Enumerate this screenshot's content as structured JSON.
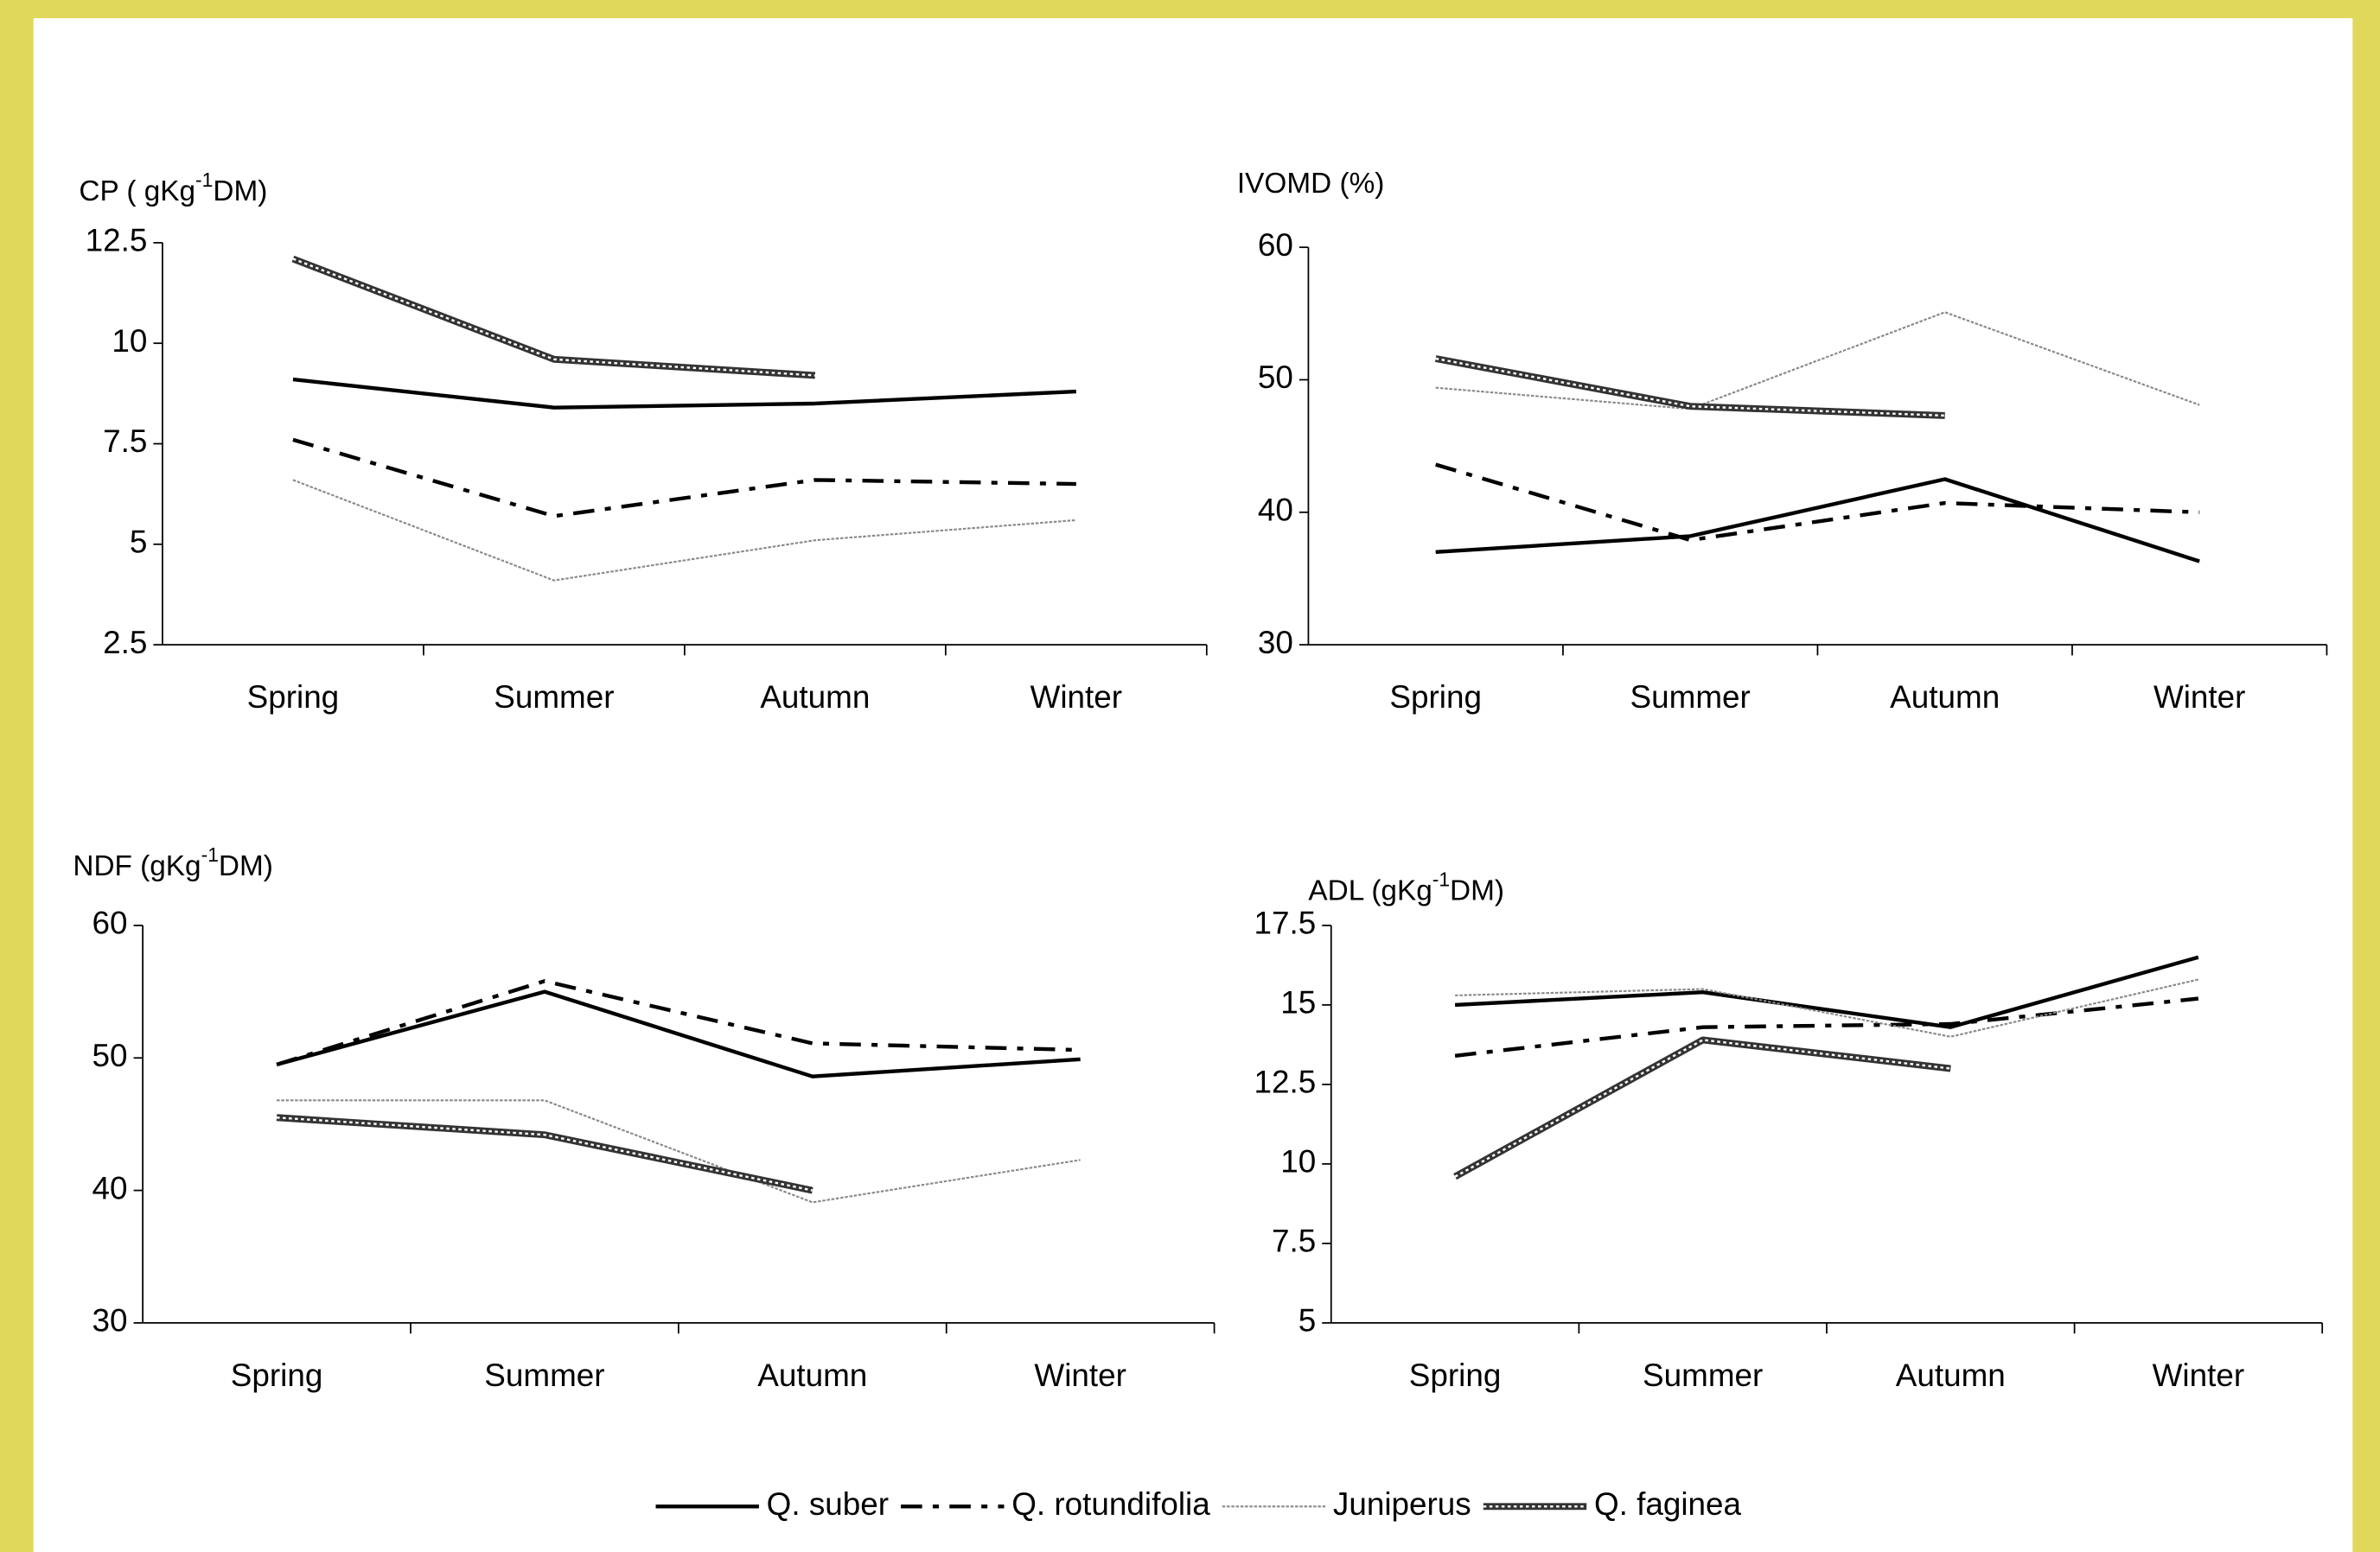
{
  "chart_data": [
    {
      "type": "line",
      "title": [
        "CP ( gKg",
        "-1",
        "DM)"
      ],
      "categories": [
        "Spring",
        "Summer",
        "Autumn",
        "Winter"
      ],
      "ylim": [
        2.5,
        12.5
      ],
      "yticks": [
        2.5,
        5,
        7.5,
        10,
        12.5
      ],
      "series": [
        {
          "name": "Q. suber",
          "color": "#000000",
          "style": "solid",
          "values": [
            9.1,
            8.4,
            8.5,
            8.8
          ]
        },
        {
          "name": "Q. rotundifolia",
          "color": "#000000",
          "style": "dash-dot",
          "values": [
            7.6,
            5.7,
            6.6,
            6.5
          ]
        },
        {
          "name": "Juniperus",
          "color": "#888888",
          "style": "dotted",
          "values": [
            6.6,
            4.1,
            5.1,
            5.6
          ]
        },
        {
          "name": "Q. faginea",
          "color": "#333333",
          "style": "beaded",
          "values": [
            12.1,
            9.6,
            9.2,
            null
          ]
        }
      ]
    },
    {
      "type": "line",
      "title": [
        "IVOMD (%)"
      ],
      "categories": [
        "Spring",
        "Summer",
        "Autumn",
        "Winter"
      ],
      "ylim": [
        30,
        60
      ],
      "yticks": [
        30,
        40,
        50,
        60
      ],
      "series": [
        {
          "name": "Q. suber",
          "color": "#000000",
          "style": "solid",
          "values": [
            37,
            38.2,
            42.5,
            36.3
          ]
        },
        {
          "name": "Q. rotundifolia",
          "color": "#000000",
          "style": "dash-dot",
          "values": [
            43.6,
            37.9,
            40.7,
            40
          ]
        },
        {
          "name": "Juniperus",
          "color": "#888888",
          "style": "dotted",
          "values": [
            49.4,
            47.8,
            55.1,
            48.1
          ]
        },
        {
          "name": "Q. faginea",
          "color": "#333333",
          "style": "beaded",
          "values": [
            51.6,
            48,
            47.3,
            null
          ]
        }
      ]
    },
    {
      "type": "line",
      "title": [
        "NDF (gKg",
        "-1",
        "DM)"
      ],
      "categories": [
        "Spring",
        "Summer",
        "Autumn",
        "Winter"
      ],
      "ylim": [
        30,
        60
      ],
      "yticks": [
        30,
        40,
        50,
        60
      ],
      "series": [
        {
          "name": "Q. suber",
          "color": "#000000",
          "style": "solid",
          "values": [
            49.5,
            55,
            48.6,
            49.9
          ]
        },
        {
          "name": "Q. rotundifolia",
          "color": "#000000",
          "style": "dash-dot",
          "values": [
            49.5,
            55.8,
            51.1,
            50.6
          ]
        },
        {
          "name": "Juniperus",
          "color": "#888888",
          "style": "dotted",
          "values": [
            46.8,
            46.8,
            39.1,
            42.3
          ]
        },
        {
          "name": "Q. faginea",
          "color": "#333333",
          "style": "beaded",
          "values": [
            45.5,
            44.2,
            40,
            null
          ]
        }
      ]
    },
    {
      "type": "line",
      "title": [
        "ADL (gKg",
        "-1",
        "DM)"
      ],
      "categories": [
        "Spring",
        "Summer",
        "Autumn",
        "Winter"
      ],
      "ylim": [
        5,
        17.5
      ],
      "yticks": [
        5,
        7.5,
        10,
        12.5,
        15,
        17.5
      ],
      "series": [
        {
          "name": "Q. suber",
          "color": "#000000",
          "style": "solid",
          "values": [
            15,
            15.4,
            14.3,
            16.5
          ]
        },
        {
          "name": "Q. rotundifolia",
          "color": "#000000",
          "style": "dash-dot",
          "values": [
            13.4,
            14.3,
            14.4,
            15.2
          ]
        },
        {
          "name": "Juniperus",
          "color": "#888888",
          "style": "dotted",
          "values": [
            15.3,
            15.5,
            14,
            15.8
          ]
        },
        {
          "name": "Q. faginea",
          "color": "#333333",
          "style": "beaded",
          "values": [
            9.6,
            13.9,
            13,
            null
          ]
        }
      ]
    }
  ]
}
